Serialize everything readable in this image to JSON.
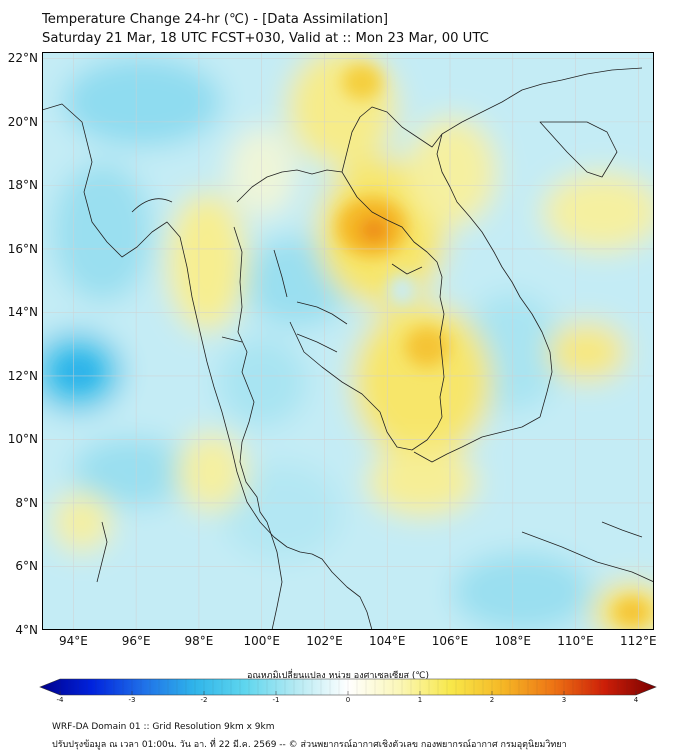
{
  "title": {
    "line1": "Temperature Change 24-hr (℃) - [Data Assimilation]",
    "line2": "Saturday 21 Mar, 18 UTC FCST+030, Valid at :: Mon 23 Mar, 00 UTC"
  },
  "map": {
    "lat_labels": [
      "22°N",
      "20°N",
      "18°N",
      "16°N",
      "14°N",
      "12°N",
      "10°N",
      "8°N",
      "6°N",
      "4°N"
    ],
    "lon_labels": [
      "94°E",
      "96°E",
      "98°E",
      "100°E",
      "102°E",
      "104°E",
      "106°E",
      "108°E",
      "110°E",
      "112°E"
    ],
    "lat_range": [
      4,
      22.2
    ],
    "lon_range": [
      93,
      112.5
    ],
    "lat_values": [
      22,
      20,
      18,
      16,
      14,
      12,
      10,
      8,
      6,
      4
    ],
    "lon_values": [
      94,
      96,
      98,
      100,
      102,
      104,
      106,
      108,
      110,
      112
    ],
    "grid": true
  },
  "colorbar": {
    "title": "อุณหภูมิเปลี่ยนแปลง หน่วย องศาเซลเซียส (℃)",
    "ticks": [
      "-4",
      "-3",
      "-2",
      "-1",
      "0",
      "1",
      "2",
      "3",
      "4"
    ],
    "tick_values": [
      -4,
      -3,
      -2,
      -1,
      0,
      1,
      2,
      3,
      4
    ],
    "range": [
      -4,
      4
    ],
    "colors": [
      "#00008b",
      "#0022dd",
      "#1f6fe8",
      "#2fb4ea",
      "#5fd6ee",
      "#b6eaf3",
      "#ffffff",
      "#fbf7b8",
      "#f8e84a",
      "#f5b826",
      "#ee7414",
      "#cc1e08",
      "#7a0000"
    ]
  },
  "footer": {
    "line1": "WRF-DA Domain 01 :: Grid Resolution 9km x 9km",
    "line2": "ปรับปรุงข้อมูล ณ เวลา 01:00น. วัน อา. ที่ 22 มี.ค. 2569 -- © ส่วนพยากรณ์อากาศเชิงตัวเลข กองพยากรณ์อากาศ กรมอุตุนิยมวิทยา"
  }
}
